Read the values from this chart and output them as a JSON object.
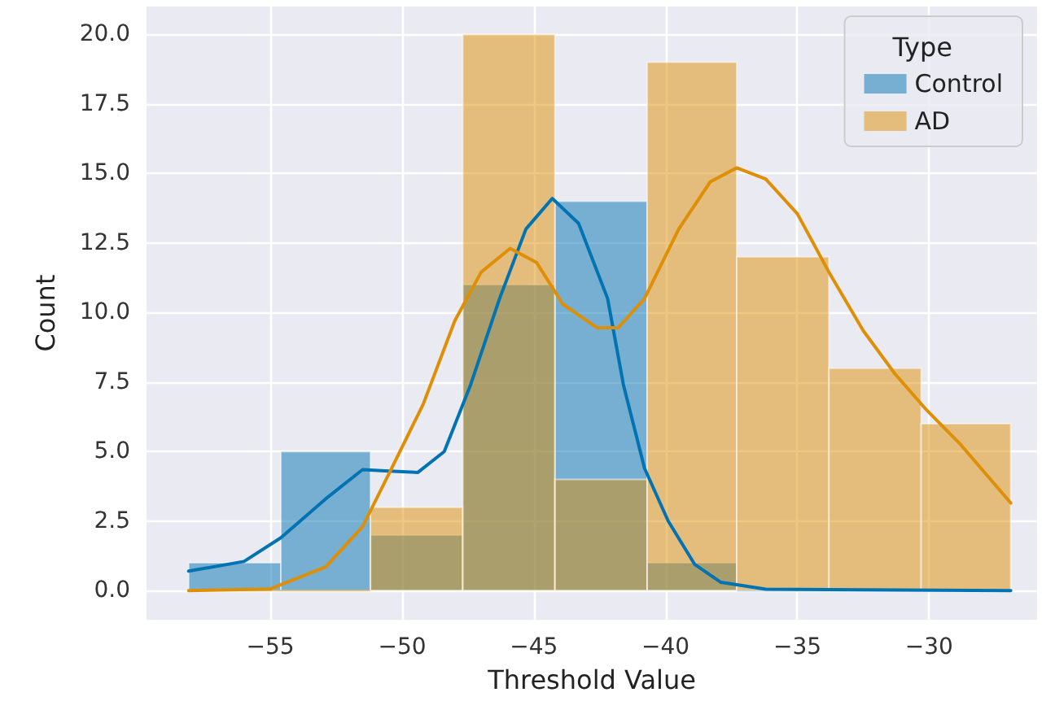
{
  "chart_data": {
    "type": "histogram",
    "xlabel": "Threshold Value",
    "ylabel": "Count",
    "legend_title": "Type",
    "legend": "top right",
    "grid": true,
    "bins": [
      -58.1,
      -54.6,
      -51.2,
      -47.7,
      -44.2,
      -40.7,
      -37.3,
      -33.8,
      -30.3,
      -26.9
    ],
    "series": [
      {
        "name": "Control",
        "color": "#0173b2",
        "values": [
          1,
          5,
          2,
          11,
          14,
          1,
          0,
          0,
          0
        ]
      },
      {
        "name": "AD",
        "color": "#de8f05",
        "values": [
          0,
          0,
          3,
          20,
          4,
          19,
          12,
          8,
          6
        ]
      },
      {
        "type": "line",
        "color": "#0173b2",
        "x": [
          -58.1,
          -56.0,
          -54.6,
          -52.9,
          -51.5,
          -50.5,
          -49.4,
          -48.4,
          -47.4,
          -46.3,
          -45.3,
          -44.3,
          -43.3,
          -42.2,
          -41.6,
          -40.8,
          -39.9,
          -38.9,
          -37.9,
          -36.2,
          -26.9
        ],
        "values": [
          0.7,
          1.05,
          1.9,
          3.3,
          4.35,
          4.3,
          4.25,
          5.0,
          7.4,
          10.5,
          13.0,
          14.1,
          13.2,
          10.5,
          7.4,
          4.4,
          2.5,
          0.95,
          0.3,
          0.05,
          0
        ]
      },
      {
        "type": "line",
        "color": "#de8f05",
        "x": [
          -58.1,
          -55.0,
          -52.9,
          -51.5,
          -50.5,
          -49.2,
          -48.0,
          -47.0,
          -45.9,
          -44.9,
          -43.9,
          -42.6,
          -41.8,
          -40.8,
          -39.5,
          -38.3,
          -37.3,
          -36.2,
          -35.0,
          -33.8,
          -32.5,
          -31.3,
          -30.1,
          -28.8,
          -26.9
        ],
        "values": [
          0,
          0.06,
          0.85,
          2.3,
          4.2,
          6.7,
          9.7,
          11.45,
          12.3,
          11.8,
          10.3,
          9.45,
          9.45,
          10.5,
          13.0,
          14.7,
          15.2,
          14.8,
          13.55,
          11.45,
          9.35,
          7.8,
          6.5,
          5.25,
          3.15
        ]
      }
    ],
    "xlim": [
      -59.7,
      -25.9
    ],
    "ylim": [
      -1.05,
      21.0
    ],
    "xticks": [
      {
        "value": -55,
        "label": "−55"
      },
      {
        "value": -50,
        "label": "−50"
      },
      {
        "value": -45,
        "label": "−45"
      },
      {
        "value": -40,
        "label": "−40"
      },
      {
        "value": -35,
        "label": "−35"
      },
      {
        "value": -30,
        "label": "−30"
      }
    ],
    "yticks": [
      {
        "value": 0,
        "label": "0.0"
      },
      {
        "value": 2.5,
        "label": "2.5"
      },
      {
        "value": 5,
        "label": "5.0"
      },
      {
        "value": 7.5,
        "label": "7.5"
      },
      {
        "value": 10,
        "label": "10.0"
      },
      {
        "value": 12.5,
        "label": "12.5"
      },
      {
        "value": 15,
        "label": "15.0"
      },
      {
        "value": 17.5,
        "label": "17.5"
      },
      {
        "value": 20,
        "label": "20.0"
      }
    ]
  }
}
